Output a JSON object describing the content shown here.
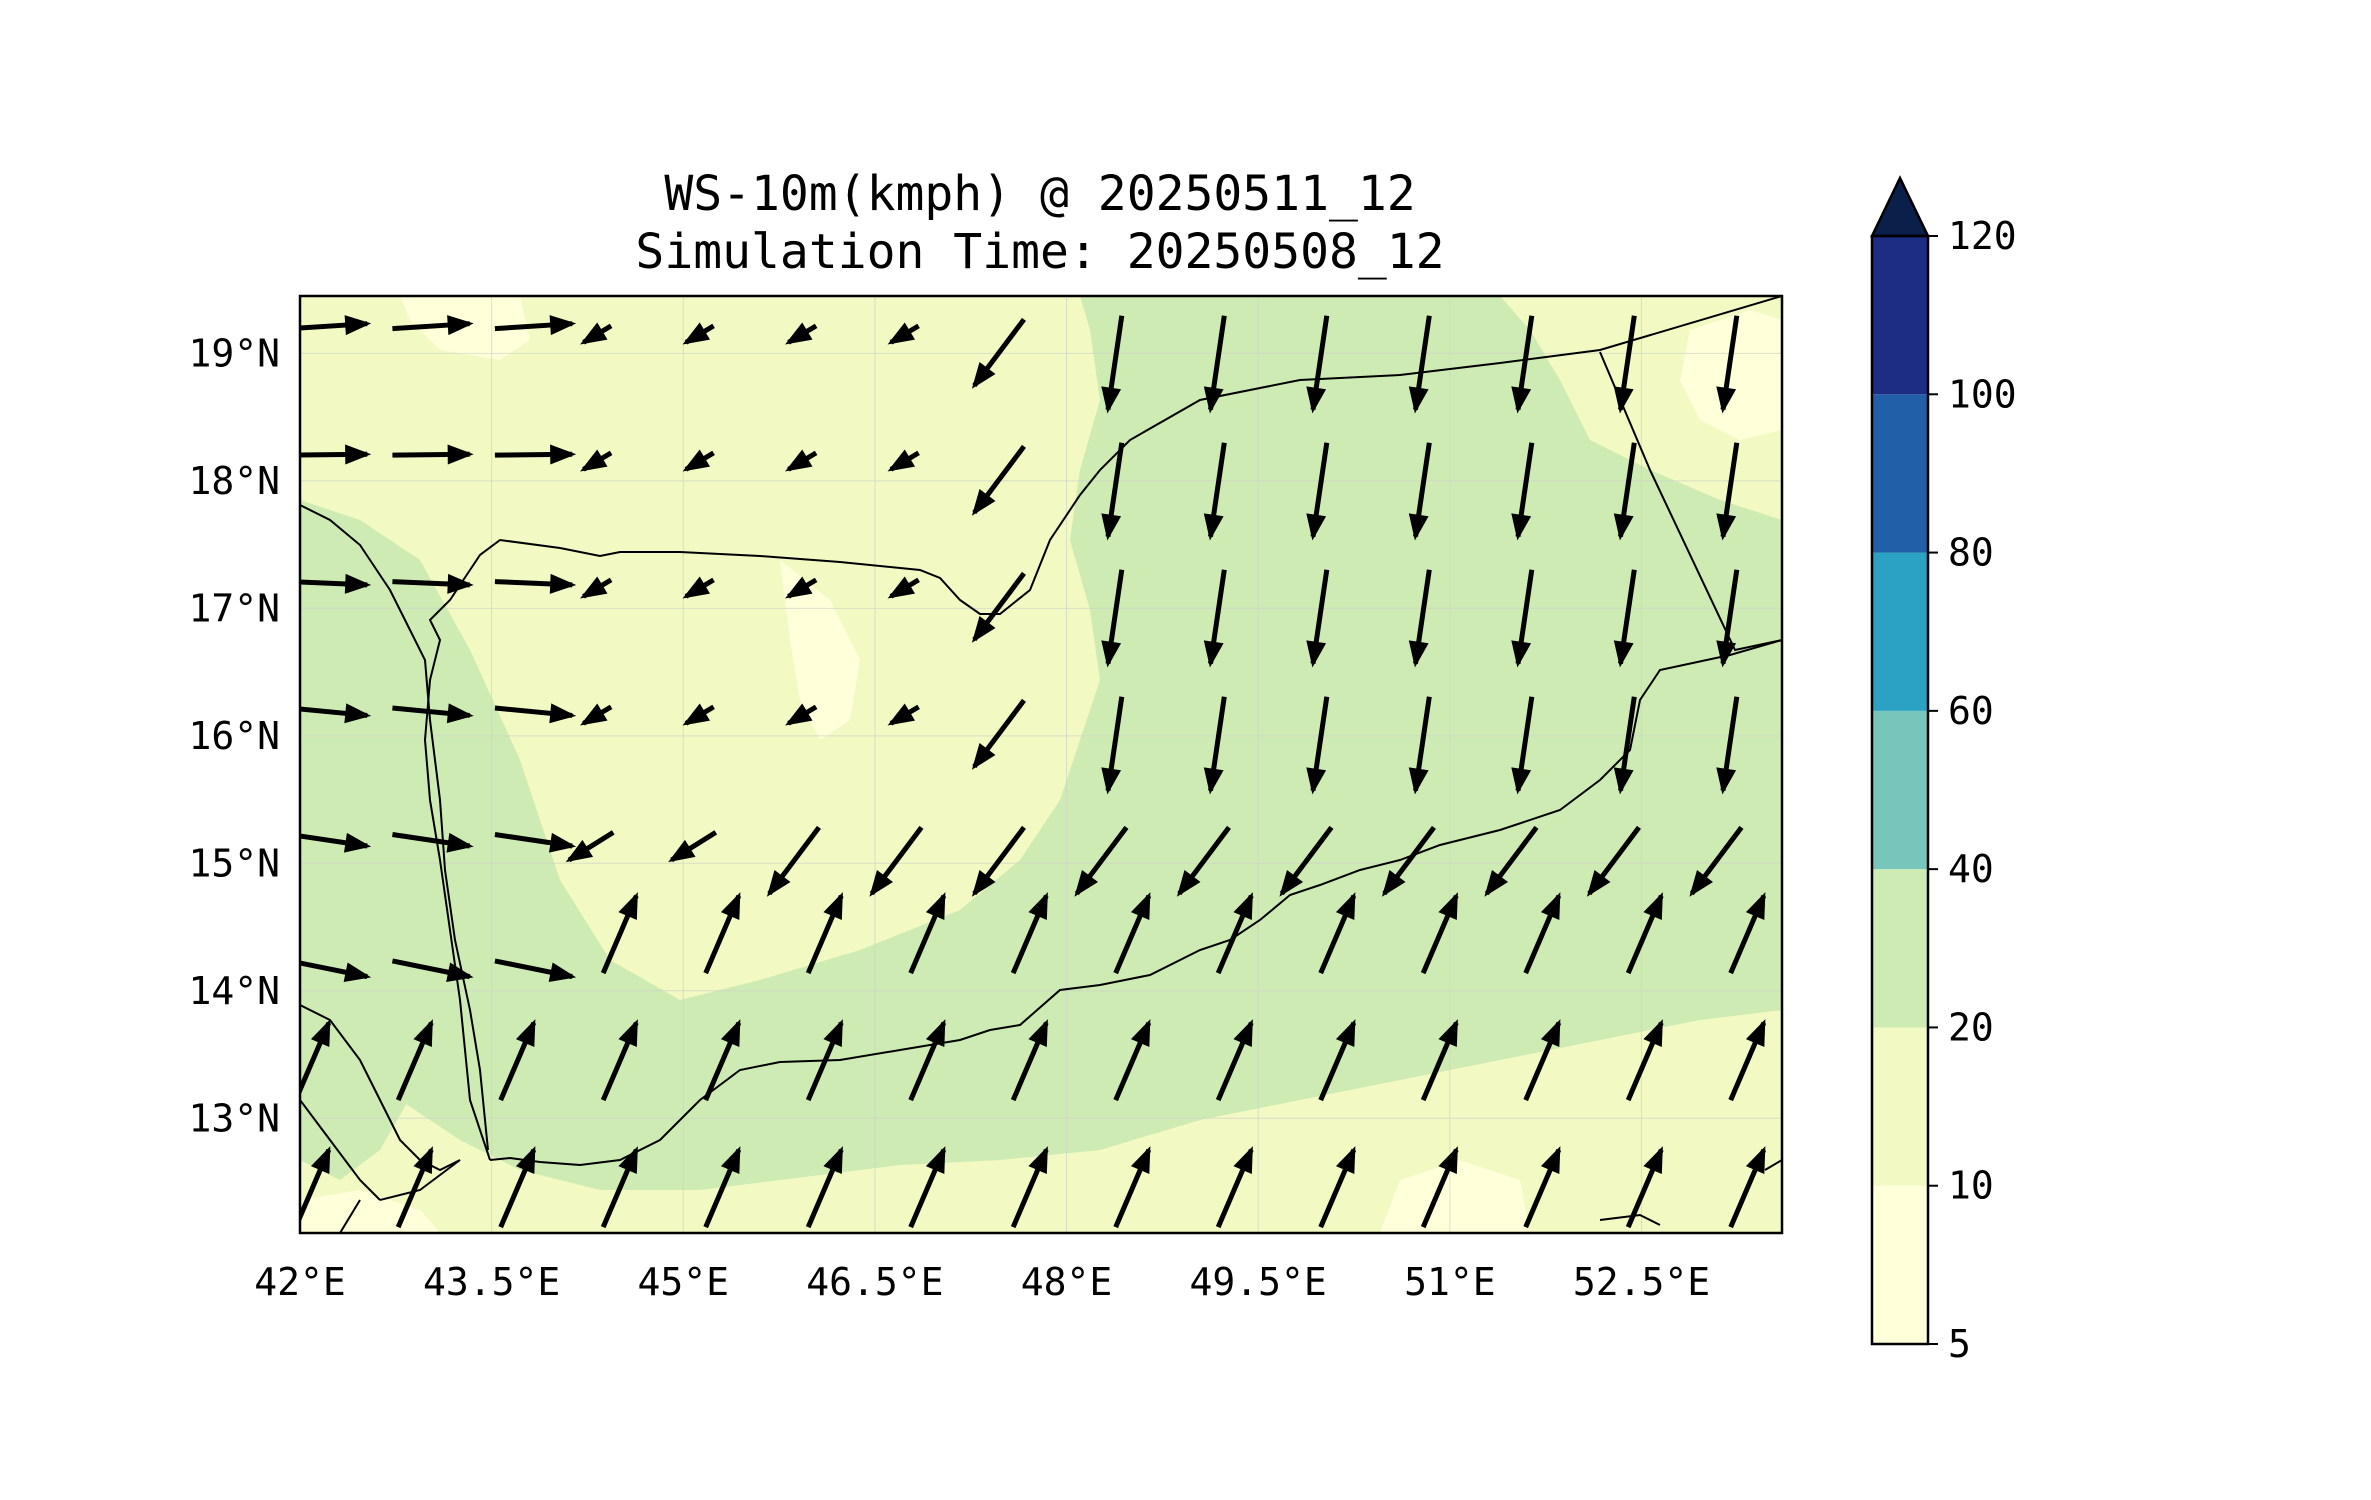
{
  "title": {
    "line1": "WS-10m(kmph) @ 20250511_12",
    "line2": "Simulation Time: 20250508_12"
  },
  "map": {
    "lon_range": [
      42,
      53.6
    ],
    "lat_range": [
      12.1,
      19.45
    ],
    "x_ticks": [
      {
        "value": 42.0,
        "label": "42°E"
      },
      {
        "value": 43.5,
        "label": "43.5°E"
      },
      {
        "value": 45.0,
        "label": "45°E"
      },
      {
        "value": 46.5,
        "label": "46.5°E"
      },
      {
        "value": 48.0,
        "label": "48°E"
      },
      {
        "value": 49.5,
        "label": "49.5°E"
      },
      {
        "value": 51.0,
        "label": "51°E"
      },
      {
        "value": 52.5,
        "label": "52.5°E"
      }
    ],
    "y_ticks": [
      {
        "value": 19,
        "label": "19°N"
      },
      {
        "value": 18,
        "label": "18°N"
      },
      {
        "value": 17,
        "label": "17°N"
      },
      {
        "value": 16,
        "label": "16°N"
      },
      {
        "value": 15,
        "label": "15°N"
      },
      {
        "value": 14,
        "label": "14°N"
      },
      {
        "value": 13,
        "label": "13°N"
      }
    ],
    "gridlines": true,
    "field": "wind speed at 10 m, filled contours with wind vectors"
  },
  "colorbar": {
    "levels": [
      "5",
      "10",
      "20",
      "40",
      "60",
      "80",
      "100",
      "120"
    ],
    "colors": [
      "#ffffd9",
      "#f2f9c2",
      "#cdebb3",
      "#78c6bb",
      "#2ba1c4",
      "#225fa9",
      "#1d2d84",
      "#0b1f4b"
    ],
    "extend": "max"
  }
}
